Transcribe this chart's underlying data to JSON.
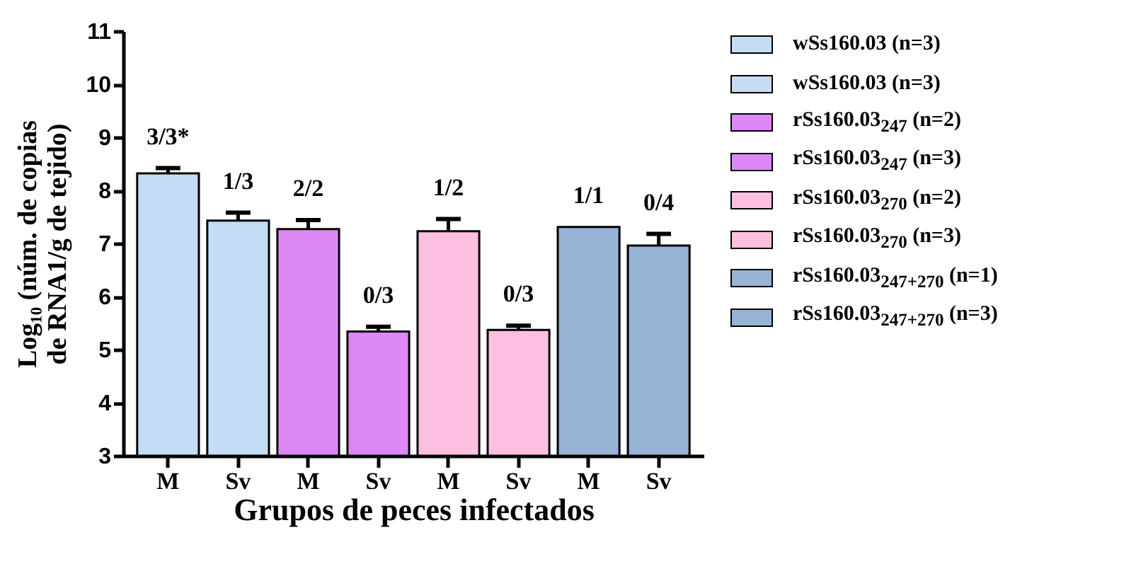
{
  "chart_data": {
    "type": "bar",
    "xlabel": "Grupos de peces infectados",
    "ylabel": "Log₁₀ (núm. de copias de RNA1/g de tejido)",
    "categories": [
      "M",
      "Sv",
      "M",
      "Sv",
      "M",
      "Sv",
      "M",
      "Sv"
    ],
    "series": [
      {
        "name": "wSs160.03 (n=3)",
        "color": "#c5dcf5",
        "values": [
          8.32,
          null,
          null,
          null,
          null,
          null,
          null,
          null
        ],
        "errors": [
          0.1,
          null,
          null,
          null,
          null,
          null,
          null,
          null
        ]
      },
      {
        "name": "wSs160.03 (n=3)",
        "color": "#c5dcf5",
        "values": [
          null,
          7.43,
          null,
          null,
          null,
          null,
          null,
          null
        ],
        "errors": [
          null,
          0.15,
          null,
          null,
          null,
          null,
          null,
          null
        ]
      },
      {
        "name": "rSs160.03$_{247}$ (n=2)",
        "color": "#dd88f5",
        "values": [
          null,
          null,
          7.27,
          null,
          null,
          null,
          null,
          null
        ],
        "errors": [
          null,
          null,
          0.17,
          null,
          null,
          null,
          null,
          null
        ]
      },
      {
        "name": "rSs160.03$_{247}$ (n=3)",
        "color": "#dd88f5",
        "values": [
          null,
          null,
          null,
          5.34,
          null,
          null,
          null,
          null
        ],
        "errors": [
          null,
          null,
          null,
          0.09,
          null,
          null,
          null,
          null
        ]
      },
      {
        "name": "rSs160.03$_{270}$ (n=2)",
        "color": "#fdbfe0",
        "values": [
          null,
          null,
          null,
          null,
          7.23,
          null,
          null,
          null
        ],
        "errors": [
          null,
          null,
          null,
          null,
          0.23,
          null,
          null,
          null
        ]
      },
      {
        "name": "rSs160.03$_{270}$ (n=3)",
        "color": "#fdbfe0",
        "values": [
          null,
          null,
          null,
          null,
          null,
          5.37,
          null,
          null
        ],
        "errors": [
          null,
          null,
          null,
          null,
          null,
          0.08,
          null,
          null
        ]
      },
      {
        "name": "rSs160.03$_{247+270}$ (n=1)",
        "color": "#97b3d6",
        "values": [
          null,
          null,
          null,
          null,
          null,
          null,
          7.31,
          null
        ]
      },
      {
        "name": "rSs160.03$_{247+270}$ (n=3)",
        "color": "#97b3d6",
        "values": [
          null,
          null,
          null,
          null,
          null,
          null,
          null,
          6.96
        ],
        "errors": [
          null,
          null,
          null,
          null,
          null,
          null,
          null,
          0.22
        ]
      }
    ],
    "annotations": [
      "3/3*",
      "1/3",
      "2/2",
      "0/3",
      "1/2",
      "0/3",
      "1/1",
      "0/4"
    ],
    "ylim": [
      3,
      11
    ],
    "yticks": [
      3,
      4,
      5,
      6,
      7,
      8,
      9,
      10,
      11
    ],
    "grid": false,
    "legend": "right"
  }
}
